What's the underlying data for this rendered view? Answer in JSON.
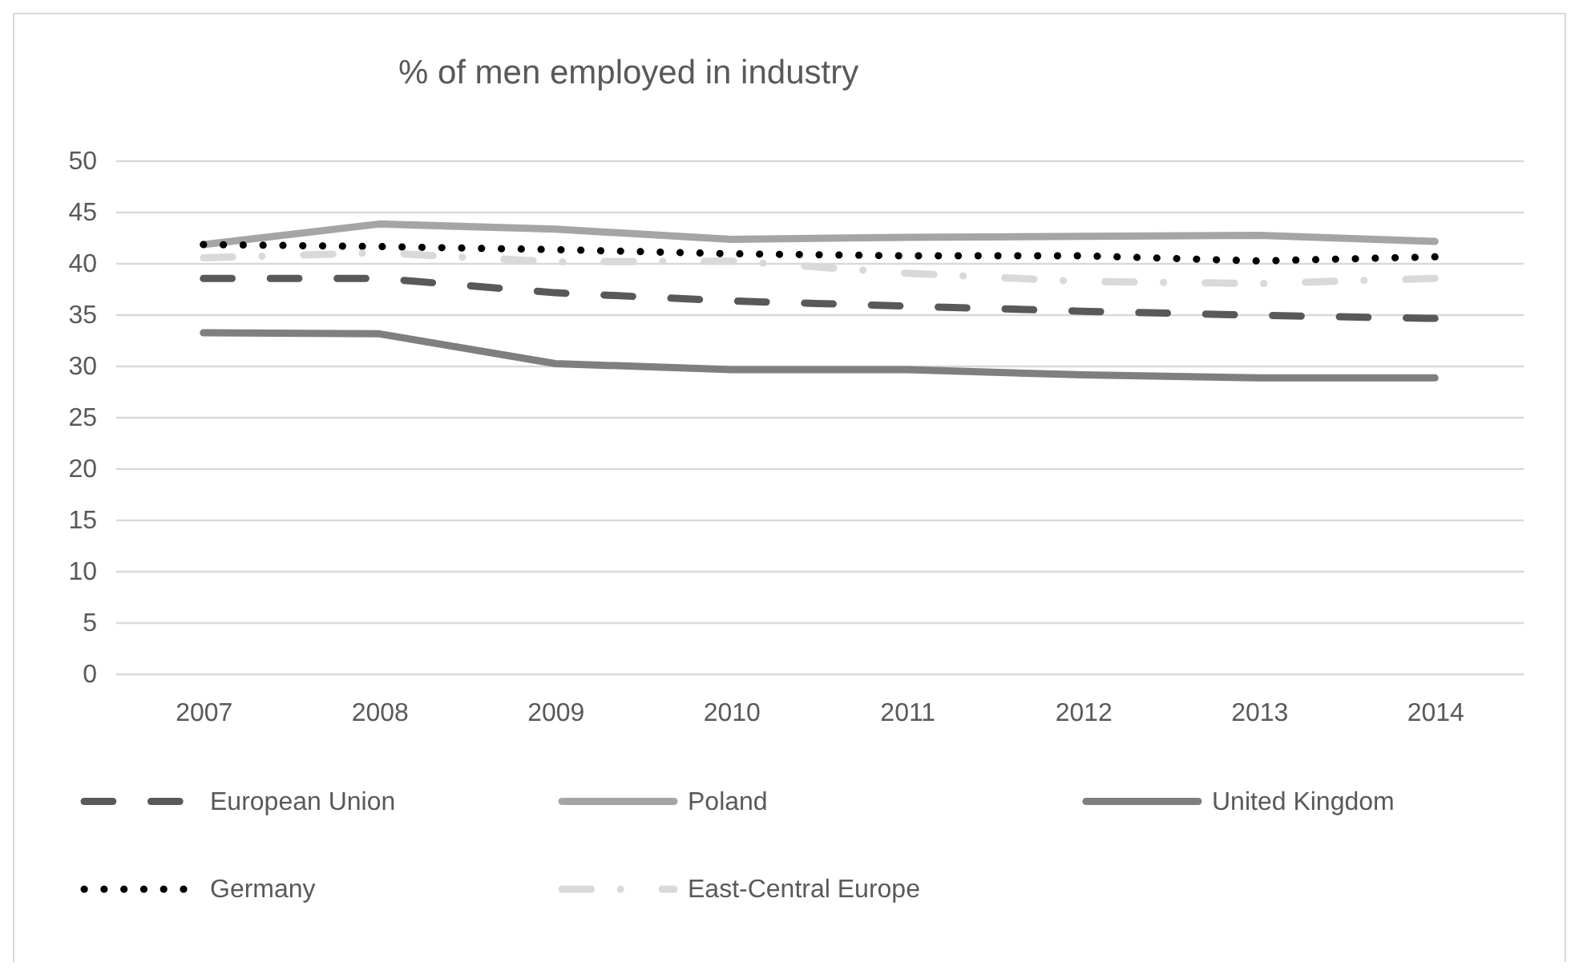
{
  "chart_data": {
    "type": "line",
    "title": "% of men employed in industry",
    "categories": [
      "2007",
      "2008",
      "2009",
      "2010",
      "2011",
      "2012",
      "2013",
      "2014"
    ],
    "series": [
      {
        "name": "European Union",
        "color": "#595959",
        "line_style": "dashed",
        "values": [
          38.5,
          38.5,
          37.1,
          36.3,
          35.8,
          35.3,
          34.9,
          34.6
        ]
      },
      {
        "name": "Poland",
        "color": "#a5a5a5",
        "line_style": "solid",
        "values": [
          41.8,
          43.8,
          43.3,
          42.3,
          42.5,
          42.6,
          42.7,
          42.1
        ]
      },
      {
        "name": "United Kingdom",
        "color": "#7f7f7f",
        "line_style": "solid",
        "values": [
          33.2,
          33.1,
          30.2,
          29.6,
          29.6,
          29.1,
          28.8,
          28.8
        ]
      },
      {
        "name": "Germany",
        "color": "#000000",
        "line_style": "dotted",
        "values": [
          41.8,
          41.6,
          41.3,
          40.9,
          40.7,
          40.7,
          40.2,
          40.6
        ]
      },
      {
        "name": "East-Central Europe",
        "color": "#d9d9d9",
        "line_style": "dashdot",
        "values": [
          40.5,
          41.0,
          40.1,
          40.2,
          39.0,
          38.2,
          38.0,
          38.5
        ]
      }
    ],
    "ylim": [
      0,
      50
    ],
    "yticks": [
      0,
      5,
      10,
      15,
      20,
      25,
      30,
      35,
      40,
      45,
      50
    ],
    "grid": "y",
    "legend": "bottom"
  }
}
